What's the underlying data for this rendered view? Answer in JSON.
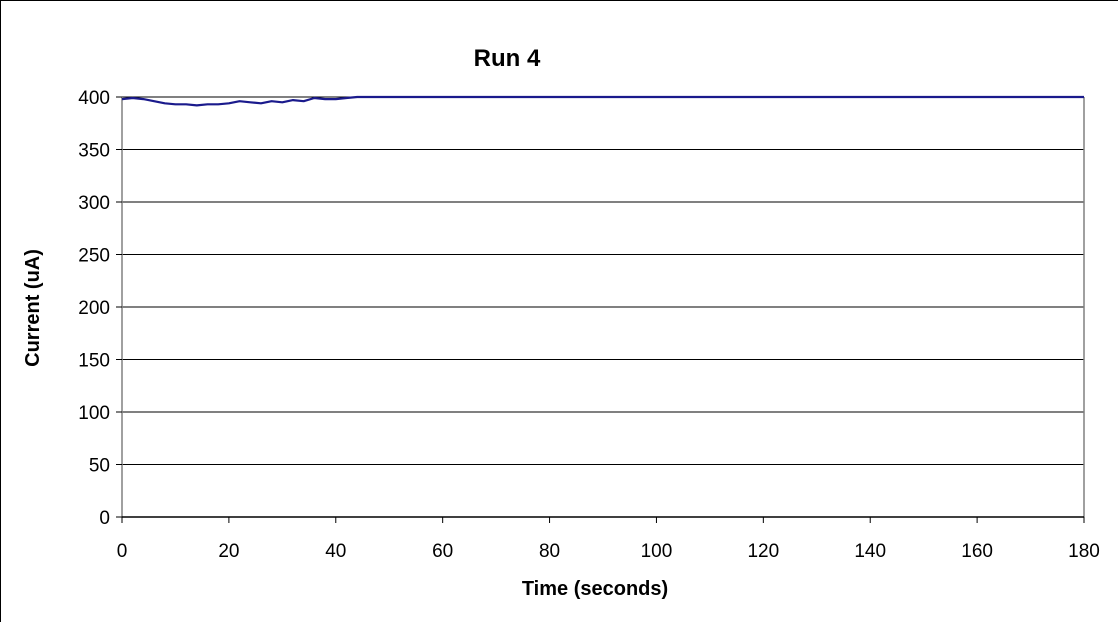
{
  "chart_data": {
    "type": "line",
    "title": "Run 4",
    "xlabel": "Time (seconds)",
    "ylabel": "Current (uA)",
    "xlim": [
      0,
      180
    ],
    "ylim": [
      0,
      400
    ],
    "xticks": [
      0,
      20,
      40,
      60,
      80,
      100,
      120,
      140,
      160,
      180
    ],
    "yticks": [
      0,
      50,
      100,
      150,
      200,
      250,
      300,
      350,
      400
    ],
    "grid": "horizontal",
    "legend": "none",
    "series": [
      {
        "color": "#1a1a8c",
        "x": [
          0,
          2,
          4,
          6,
          8,
          10,
          12,
          14,
          16,
          18,
          20,
          22,
          24,
          26,
          28,
          30,
          32,
          34,
          36,
          38,
          40,
          42,
          44,
          60,
          80,
          100,
          120,
          140,
          160,
          180
        ],
        "y": [
          398,
          399,
          398,
          396,
          394,
          393,
          393,
          392,
          393,
          393,
          394,
          396,
          395,
          394,
          396,
          395,
          397,
          396,
          399,
          398,
          398,
          399,
          400,
          400,
          400,
          400,
          400,
          400,
          400,
          400
        ]
      }
    ]
  }
}
